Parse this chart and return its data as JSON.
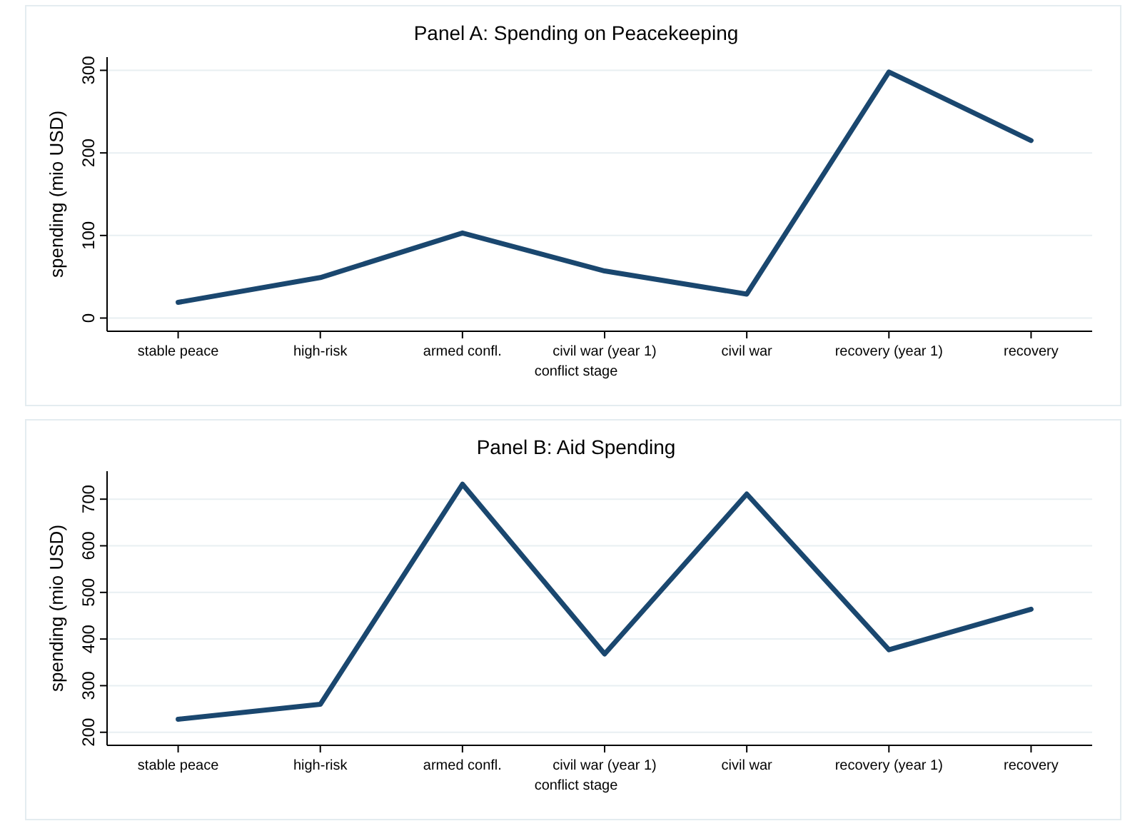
{
  "chart_data": [
    {
      "type": "line",
      "title": "Panel A: Spending on Peacekeeping",
      "xlabel": "conflict stage",
      "ylabel": "spending (mio USD)",
      "categories": [
        "stable peace",
        "high-risk",
        "armed confl.",
        "civil war (year 1)",
        "civil war",
        "recovery (year 1)",
        "recovery"
      ],
      "series": [
        {
          "color": "#1a476f",
          "values": [
            19,
            49,
            103,
            57,
            29,
            298,
            215
          ]
        }
      ],
      "ylim": [
        -16,
        316
      ],
      "yticks": [
        0,
        100,
        200,
        300
      ],
      "grid": "y",
      "marker": "none",
      "line_style": "solid"
    },
    {
      "type": "line",
      "title": "Panel B: Aid Spending",
      "xlabel": "conflict stage",
      "ylabel": "spending (mio USD)",
      "categories": [
        "stable peace",
        "high-risk",
        "armed confl.",
        "civil war (year 1)",
        "civil war",
        "recovery (year 1)",
        "recovery"
      ],
      "series": [
        {
          "color": "#1a476f",
          "values": [
            228,
            260,
            732,
            368,
            711,
            377,
            464
          ]
        }
      ],
      "ylim": [
        172,
        760
      ],
      "yticks": [
        200,
        300,
        400,
        500,
        600,
        700
      ],
      "grid": "y",
      "marker": "none",
      "line_style": "solid"
    }
  ]
}
